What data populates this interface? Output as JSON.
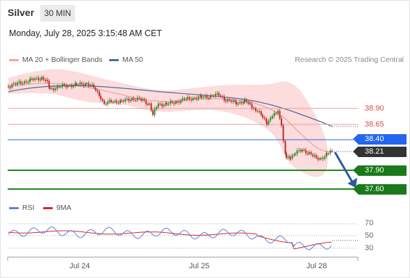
{
  "header": {
    "symbol": "Silver",
    "timeframe": "30 MIN",
    "date": "Monday, July 28, 2025 3:15:48 AM CET"
  },
  "legend": {
    "bb_label": "MA 20 + Bollinger Bands",
    "ma50_label": "MA 50",
    "research": "Research © 2025 Trading Central"
  },
  "levels": {
    "resistance": [
      "38.90",
      "38.65"
    ],
    "pivot": "38.40",
    "last": "38.21",
    "support": [
      "37.90",
      "37.60"
    ]
  },
  "rsi_legend": {
    "rsi_label": "RSI",
    "ma_label": "9MA"
  },
  "rsi_levels": [
    "70",
    "50",
    "30"
  ],
  "x_axis": [
    "Jul 24",
    "Jul 25",
    "Jul 28"
  ],
  "colors": {
    "up": "#2a8a2a",
    "down": "#c02a2a",
    "bb": "#f8a0a0",
    "ma50": "#4a6aa0",
    "pivot": "#2466ee",
    "support": "#1a8a1a",
    "arrow": "#2d5a9a",
    "rsi": "#5a7fdf",
    "rsi_ma": "#dd2222"
  }
}
